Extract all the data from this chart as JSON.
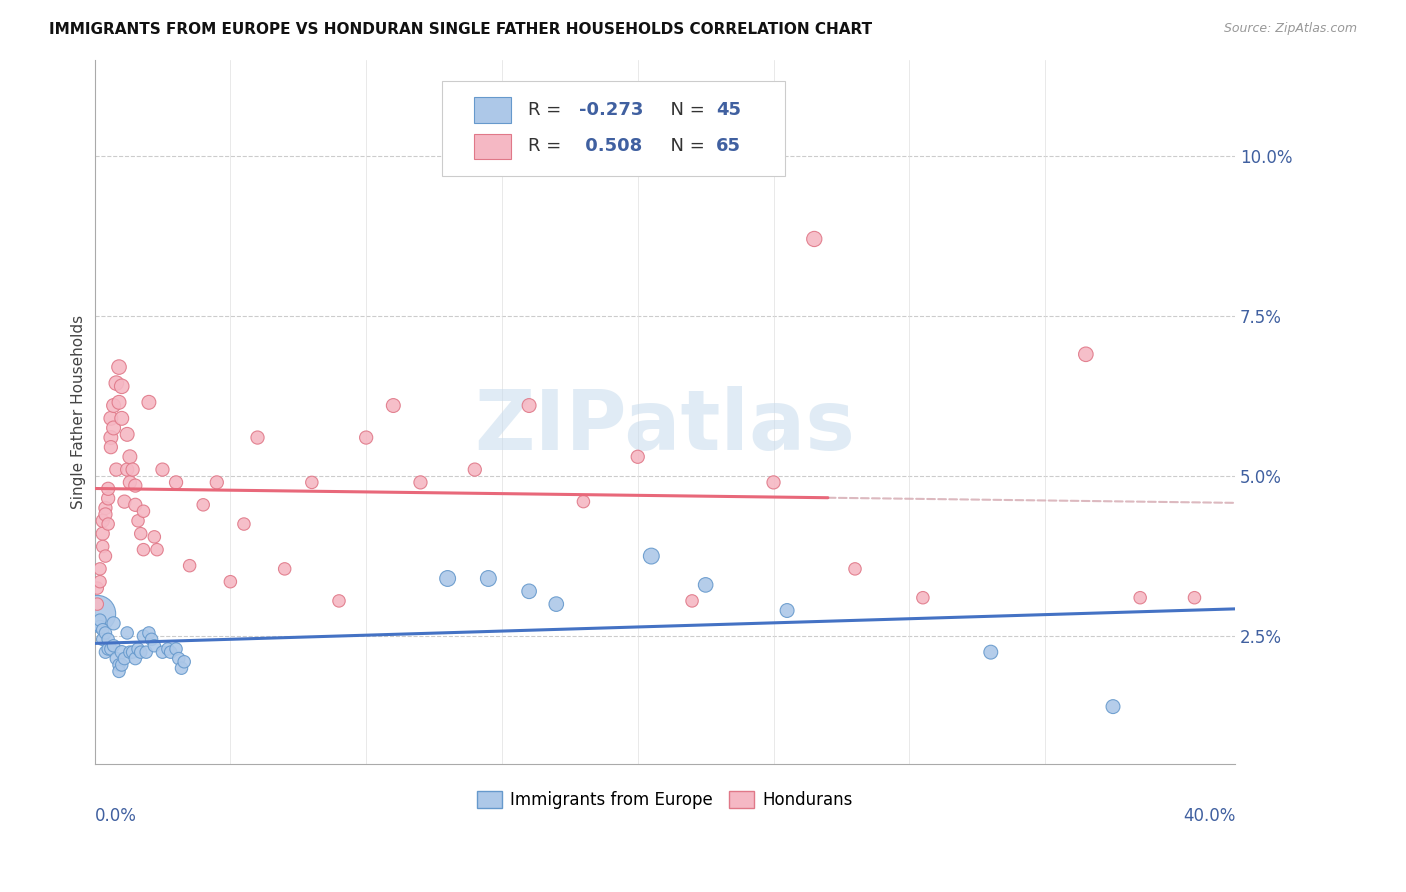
{
  "title": "IMMIGRANTS FROM EUROPE VS HONDURAN SINGLE FATHER HOUSEHOLDS CORRELATION CHART",
  "source": "Source: ZipAtlas.com",
  "ylabel": "Single Father Households",
  "ytick_vals": [
    0.025,
    0.05,
    0.075,
    0.1
  ],
  "ytick_labels": [
    "2.5%",
    "5.0%",
    "7.5%",
    "10.0%"
  ],
  "xlim": [
    0.0,
    0.42
  ],
  "ylim": [
    0.005,
    0.115
  ],
  "color_europe": "#adc8e8",
  "color_europe_edge": "#6699cc",
  "color_europe_line": "#4472c4",
  "color_honduras": "#f5b8c4",
  "color_honduras_edge": "#e07888",
  "color_honduras_line": "#e8687a",
  "color_dashed": "#d4a8b0",
  "color_grid": "#cccccc",
  "watermark_color": "#c8dced",
  "legend_text_color": "#4060a0",
  "europe_pts": [
    [
      0.001,
      0.0285
    ],
    [
      0.002,
      0.0265
    ],
    [
      0.002,
      0.0275
    ],
    [
      0.003,
      0.026
    ],
    [
      0.003,
      0.0245
    ],
    [
      0.004,
      0.0255
    ],
    [
      0.004,
      0.0225
    ],
    [
      0.005,
      0.0245
    ],
    [
      0.005,
      0.023
    ],
    [
      0.006,
      0.023
    ],
    [
      0.007,
      0.027
    ],
    [
      0.007,
      0.0235
    ],
    [
      0.008,
      0.0215
    ],
    [
      0.009,
      0.0205
    ],
    [
      0.009,
      0.0195
    ],
    [
      0.01,
      0.0225
    ],
    [
      0.01,
      0.0205
    ],
    [
      0.011,
      0.0215
    ],
    [
      0.012,
      0.0255
    ],
    [
      0.013,
      0.0225
    ],
    [
      0.014,
      0.0225
    ],
    [
      0.015,
      0.0215
    ],
    [
      0.016,
      0.023
    ],
    [
      0.017,
      0.0225
    ],
    [
      0.018,
      0.025
    ],
    [
      0.019,
      0.0225
    ],
    [
      0.02,
      0.0255
    ],
    [
      0.021,
      0.0245
    ],
    [
      0.022,
      0.0235
    ],
    [
      0.025,
      0.0225
    ],
    [
      0.027,
      0.023
    ],
    [
      0.028,
      0.0225
    ],
    [
      0.03,
      0.023
    ],
    [
      0.031,
      0.0215
    ],
    [
      0.032,
      0.02
    ],
    [
      0.033,
      0.021
    ],
    [
      0.13,
      0.034
    ],
    [
      0.145,
      0.034
    ],
    [
      0.16,
      0.032
    ],
    [
      0.17,
      0.03
    ],
    [
      0.205,
      0.0375
    ],
    [
      0.225,
      0.033
    ],
    [
      0.255,
      0.029
    ],
    [
      0.33,
      0.0225
    ],
    [
      0.375,
      0.014
    ]
  ],
  "europe_sizes": [
    700,
    80,
    80,
    80,
    80,
    80,
    80,
    80,
    80,
    80,
    90,
    80,
    80,
    80,
    80,
    90,
    80,
    80,
    80,
    80,
    80,
    80,
    80,
    80,
    80,
    80,
    80,
    80,
    80,
    80,
    80,
    80,
    80,
    80,
    80,
    80,
    130,
    130,
    110,
    110,
    130,
    110,
    100,
    100,
    100
  ],
  "honduras_pts": [
    [
      0.001,
      0.03
    ],
    [
      0.001,
      0.0325
    ],
    [
      0.002,
      0.0355
    ],
    [
      0.002,
      0.0335
    ],
    [
      0.003,
      0.041
    ],
    [
      0.003,
      0.043
    ],
    [
      0.003,
      0.039
    ],
    [
      0.004,
      0.0375
    ],
    [
      0.004,
      0.045
    ],
    [
      0.004,
      0.044
    ],
    [
      0.005,
      0.0465
    ],
    [
      0.005,
      0.0425
    ],
    [
      0.005,
      0.048
    ],
    [
      0.006,
      0.056
    ],
    [
      0.006,
      0.059
    ],
    [
      0.006,
      0.0545
    ],
    [
      0.007,
      0.061
    ],
    [
      0.007,
      0.0575
    ],
    [
      0.008,
      0.0645
    ],
    [
      0.008,
      0.051
    ],
    [
      0.009,
      0.067
    ],
    [
      0.009,
      0.0615
    ],
    [
      0.01,
      0.059
    ],
    [
      0.01,
      0.064
    ],
    [
      0.011,
      0.046
    ],
    [
      0.012,
      0.0565
    ],
    [
      0.012,
      0.051
    ],
    [
      0.013,
      0.053
    ],
    [
      0.013,
      0.049
    ],
    [
      0.014,
      0.051
    ],
    [
      0.015,
      0.0455
    ],
    [
      0.015,
      0.0485
    ],
    [
      0.016,
      0.043
    ],
    [
      0.017,
      0.041
    ],
    [
      0.018,
      0.0445
    ],
    [
      0.018,
      0.0385
    ],
    [
      0.02,
      0.0615
    ],
    [
      0.022,
      0.0405
    ],
    [
      0.023,
      0.0385
    ],
    [
      0.025,
      0.051
    ],
    [
      0.03,
      0.049
    ],
    [
      0.035,
      0.036
    ],
    [
      0.04,
      0.0455
    ],
    [
      0.045,
      0.049
    ],
    [
      0.05,
      0.0335
    ],
    [
      0.055,
      0.0425
    ],
    [
      0.06,
      0.056
    ],
    [
      0.07,
      0.0355
    ],
    [
      0.08,
      0.049
    ],
    [
      0.09,
      0.0305
    ],
    [
      0.1,
      0.056
    ],
    [
      0.11,
      0.061
    ],
    [
      0.12,
      0.049
    ],
    [
      0.14,
      0.051
    ],
    [
      0.16,
      0.061
    ],
    [
      0.18,
      0.046
    ],
    [
      0.2,
      0.053
    ],
    [
      0.22,
      0.0305
    ],
    [
      0.25,
      0.049
    ],
    [
      0.265,
      0.087
    ],
    [
      0.28,
      0.0355
    ],
    [
      0.305,
      0.031
    ],
    [
      0.365,
      0.069
    ],
    [
      0.385,
      0.031
    ],
    [
      0.405,
      0.031
    ]
  ],
  "honduras_sizes": [
    80,
    80,
    80,
    80,
    90,
    90,
    80,
    80,
    90,
    90,
    90,
    80,
    90,
    100,
    100,
    90,
    100,
    100,
    110,
    90,
    110,
    100,
    100,
    110,
    90,
    100,
    90,
    100,
    90,
    90,
    90,
    90,
    80,
    80,
    80,
    80,
    100,
    80,
    80,
    90,
    90,
    80,
    80,
    90,
    80,
    80,
    90,
    80,
    80,
    80,
    90,
    100,
    90,
    90,
    100,
    80,
    90,
    80,
    90,
    120,
    80,
    80,
    110,
    80,
    80
  ]
}
